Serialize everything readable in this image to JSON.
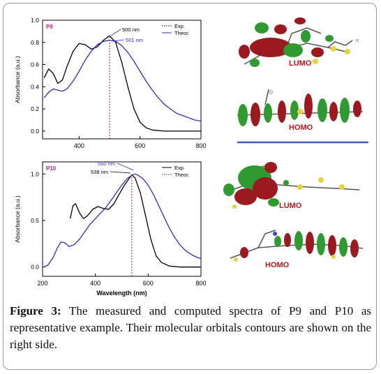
{
  "chart_data": [
    {
      "type": "line",
      "panel_tag": "P9",
      "ylabel": "Absorbance (a.u.)",
      "xlabel": "",
      "xlim": [
        280,
        800
      ],
      "ylim": [
        -0.07,
        1.0
      ],
      "xticks": [
        "400",
        "600",
        "800"
      ],
      "yticks": [
        "0.0",
        "0.2",
        "0.4",
        "0.6",
        "0.8",
        "1.0"
      ],
      "legend": [
        {
          "name": "Exp.",
          "style": "dotted",
          "color": "#000000"
        },
        {
          "name": "Theor.",
          "style": "solid",
          "color": "#2e2fc8"
        }
      ],
      "legend_position": "top-right",
      "peak_lines": [
        {
          "x": 500,
          "label": "500 nm",
          "color": "#000000"
        },
        {
          "x": 501,
          "label": "501 nm",
          "color": "#2e2fc8"
        }
      ],
      "series": [
        {
          "name": "Exp.",
          "color": "#000000",
          "x": [
            285,
            300,
            315,
            330,
            345,
            360,
            380,
            400,
            420,
            440,
            460,
            480,
            500,
            520,
            540,
            560,
            580,
            600,
            620,
            640,
            680,
            720,
            760,
            800
          ],
          "y": [
            0.48,
            0.56,
            0.52,
            0.43,
            0.46,
            0.58,
            0.72,
            0.79,
            0.78,
            0.74,
            0.76,
            0.82,
            0.86,
            0.8,
            0.62,
            0.4,
            0.2,
            0.08,
            0.03,
            0.01,
            0.0,
            0.0,
            0.0,
            0.0
          ]
        },
        {
          "name": "Theor.",
          "color": "#2e2fc8",
          "x": [
            285,
            300,
            315,
            330,
            345,
            360,
            380,
            400,
            420,
            440,
            460,
            480,
            500,
            520,
            540,
            560,
            580,
            600,
            620,
            640,
            660,
            680,
            700,
            720,
            740,
            760,
            780,
            800
          ],
          "y": [
            0.3,
            0.35,
            0.38,
            0.37,
            0.36,
            0.38,
            0.45,
            0.54,
            0.64,
            0.72,
            0.78,
            0.81,
            0.82,
            0.81,
            0.77,
            0.71,
            0.63,
            0.54,
            0.45,
            0.37,
            0.3,
            0.24,
            0.2,
            0.16,
            0.14,
            0.12,
            0.1,
            0.09
          ]
        }
      ]
    },
    {
      "type": "line",
      "panel_tag": "P10",
      "ylabel": "Absorbance (a.u.)",
      "xlabel": "Wavelength (nm)",
      "xlim": [
        200,
        800
      ],
      "ylim": [
        -0.1,
        1.13
      ],
      "xticks": [
        "200",
        "400",
        "600",
        "800"
      ],
      "yticks": [
        "0.0",
        "0.5",
        "1.0"
      ],
      "legend": [
        {
          "name": "Exp.",
          "style": "solid",
          "color": "#000000"
        },
        {
          "name": "Theor.",
          "style": "dotted",
          "color": "#2e2fc8"
        }
      ],
      "legend_position": "top-right",
      "peak_lines": [
        {
          "x": 538,
          "label": "538 nm",
          "color": "#000000"
        },
        {
          "x": 550,
          "label": "550 nm",
          "color": "#2e2fc8"
        }
      ],
      "series": [
        {
          "name": "Exp.",
          "color": "#000000",
          "x": [
            305,
            315,
            325,
            340,
            355,
            370,
            390,
            410,
            430,
            450,
            470,
            490,
            510,
            530,
            538,
            550,
            570,
            590,
            610,
            630,
            650,
            680,
            720,
            760,
            800
          ],
          "y": [
            0.52,
            0.66,
            0.68,
            0.58,
            0.52,
            0.55,
            0.62,
            0.65,
            0.63,
            0.62,
            0.68,
            0.78,
            0.88,
            0.96,
            0.99,
            0.96,
            0.8,
            0.55,
            0.3,
            0.12,
            0.05,
            0.01,
            0.0,
            0.0,
            0.0
          ]
        },
        {
          "name": "Theor.",
          "color": "#2e2fc8",
          "x": [
            205,
            220,
            240,
            255,
            270,
            285,
            300,
            320,
            340,
            360,
            380,
            400,
            420,
            440,
            460,
            480,
            500,
            520,
            540,
            550,
            560,
            580,
            600,
            620,
            640,
            660,
            680,
            700,
            720,
            740,
            760,
            780,
            800
          ],
          "y": [
            0.0,
            0.02,
            0.1,
            0.2,
            0.27,
            0.26,
            0.22,
            0.24,
            0.3,
            0.38,
            0.46,
            0.52,
            0.58,
            0.64,
            0.72,
            0.8,
            0.88,
            0.95,
            0.99,
            1.0,
            0.99,
            0.95,
            0.88,
            0.78,
            0.66,
            0.54,
            0.42,
            0.32,
            0.24,
            0.18,
            0.14,
            0.11,
            0.09
          ]
        }
      ]
    }
  ],
  "orbitals": {
    "p9_lumo": "LUMO",
    "p9_homo": "HOMO",
    "p10_lumo": "LUMO",
    "p10_homo": "HOMO"
  },
  "caption": {
    "label": "Figure 3:",
    "text": " The measured and computed spectra of P9 and P10 as representative example. Their molecular orbitals contours are shown on the right side."
  }
}
